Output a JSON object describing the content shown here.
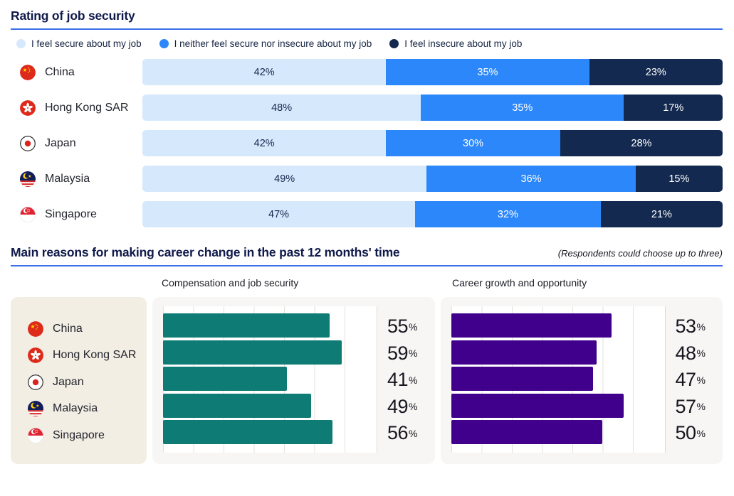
{
  "colors": {
    "accent_rule": "#3A6FE8",
    "panel_beige": "#F3EEE4",
    "panel_gray": "#F7F6F4",
    "title_navy": "#101A4B",
    "secure_light_blue": "#D6E9FC",
    "neutral_blue": "#2B87FA",
    "insecure_navy": "#13294F",
    "teal": "#0E7B74",
    "purple": "#40008C"
  },
  "section1": {
    "title": "Rating of job security"
  },
  "section2": {
    "title": "Main reasons for making career change in the past 12 months' time",
    "note": "(Respondents could choose up to three)"
  },
  "countries": [
    {
      "name": "China",
      "flag_icon": "china-flag-icon"
    },
    {
      "name": "Hong Kong SAR",
      "flag_icon": "hong-kong-flag-icon"
    },
    {
      "name": "Japan",
      "flag_icon": "japan-flag-icon"
    },
    {
      "name": "Malaysia",
      "flag_icon": "malaysia-flag-icon"
    },
    {
      "name": "Singapore",
      "flag_icon": "singapore-flag-icon"
    }
  ],
  "chart_data": [
    {
      "type": "bar",
      "subtype": "stacked-horizontal",
      "title": "Rating of job security",
      "categories": [
        "China",
        "Hong Kong SAR",
        "Japan",
        "Malaysia",
        "Singapore"
      ],
      "series": [
        {
          "name": "I feel secure about my job",
          "color": "#D6E9FC",
          "values": [
            42,
            48,
            42,
            49,
            47
          ]
        },
        {
          "name": "I neither feel secure nor insecure about my job",
          "color": "#2B87FA",
          "values": [
            35,
            35,
            30,
            36,
            32
          ]
        },
        {
          "name": "I feel insecure about my job",
          "color": "#13294F",
          "values": [
            23,
            17,
            28,
            15,
            21
          ]
        }
      ],
      "unit": "%",
      "xlim": [
        0,
        100
      ],
      "legend_position": "top",
      "value_labels": "inside"
    },
    {
      "type": "bar",
      "subtype": "horizontal",
      "title": "Compensation and job security",
      "parent_title": "Main reasons for making career change in the past 12 months' time",
      "categories": [
        "China",
        "Hong Kong SAR",
        "Japan",
        "Malaysia",
        "Singapore"
      ],
      "values": [
        55,
        59,
        41,
        49,
        56
      ],
      "color": "#0E7B74",
      "unit": "%",
      "xlim": [
        0,
        60
      ],
      "grid": "vertical, every 10",
      "value_labels": "right"
    },
    {
      "type": "bar",
      "subtype": "horizontal",
      "title": "Career growth and opportunity",
      "parent_title": "Main reasons for making career change in the past 12 months' time",
      "categories": [
        "China",
        "Hong Kong SAR",
        "Japan",
        "Malaysia",
        "Singapore"
      ],
      "values": [
        53,
        48,
        47,
        57,
        50
      ],
      "color": "#40008C",
      "unit": "%",
      "xlim": [
        0,
        60
      ],
      "grid": "vertical, every 10",
      "value_labels": "right"
    }
  ]
}
